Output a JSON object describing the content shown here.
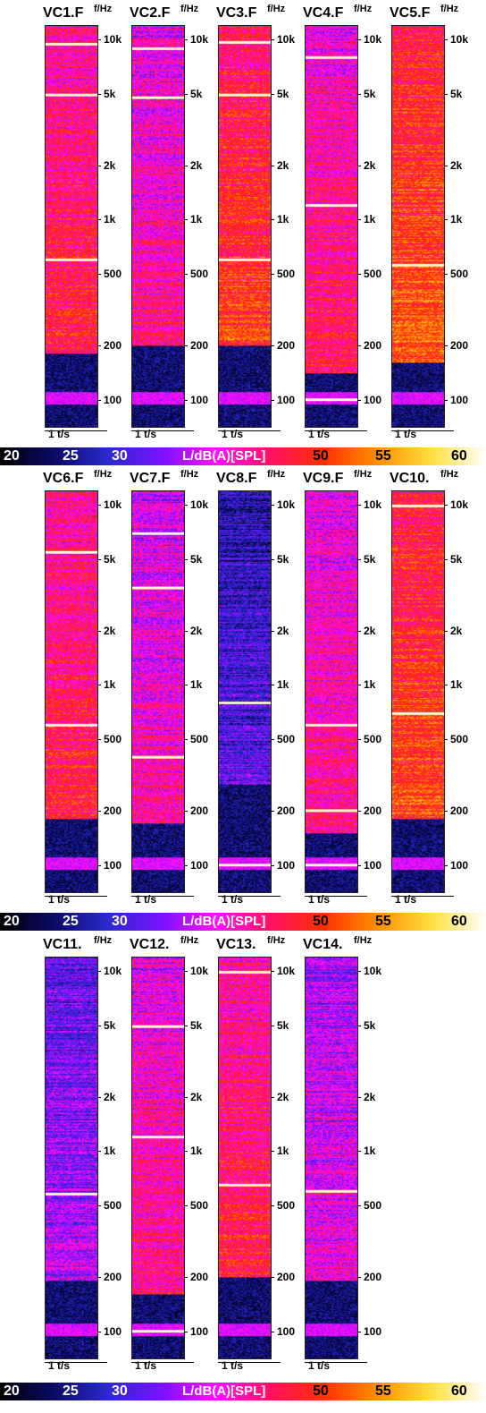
{
  "chart_data": {
    "type": "heatmap",
    "title": "",
    "xlabel": "t/s",
    "ylabel": "f/Hz",
    "y_scale": "log",
    "ylim": [
      70,
      12000
    ],
    "y_ticks": [
      "10k",
      "5k",
      "2k",
      "1k",
      "500",
      "200",
      "100"
    ],
    "y_tick_values": [
      10000,
      5000,
      2000,
      1000,
      500,
      200,
      100
    ],
    "x_tick": "1 t/s",
    "colorbar": {
      "label": "L/dB(A)[SPL]",
      "range": [
        20,
        60
      ],
      "ticks": [
        "20",
        "25",
        "30",
        "50",
        "55",
        "60"
      ],
      "colors": [
        "#000000",
        "#0a0a66",
        "#2a2ad0",
        "#7a10ff",
        "#ff10ff",
        "#ff1060",
        "#ff3000",
        "#ff9000",
        "#ffe040",
        "#ffffff"
      ]
    },
    "panels": [
      {
        "title": "VC1.F",
        "unit": "f/Hz",
        "level": 0.62,
        "tones": [
          600,
          5000,
          9500
        ],
        "quiet_below": 180
      },
      {
        "title": "VC2.F",
        "unit": "f/Hz",
        "level": 0.55,
        "tones": [
          4800,
          9000
        ],
        "quiet_below": 200
      },
      {
        "title": "VC3.F",
        "unit": "f/Hz",
        "level": 0.68,
        "tones": [
          600,
          5000,
          9800
        ],
        "quiet_below": 200
      },
      {
        "title": "VC4.F",
        "unit": "f/Hz",
        "level": 0.58,
        "tones": [
          1200,
          8000,
          100
        ],
        "quiet_below": 140
      },
      {
        "title": "VC5.F",
        "unit": "f/Hz",
        "level": 0.72,
        "tones": [
          560
        ],
        "quiet_below": 160
      },
      {
        "title": "VC6.F",
        "unit": "f/Hz",
        "level": 0.62,
        "tones": [
          600,
          5500
        ],
        "quiet_below": 180
      },
      {
        "title": "VC7.F",
        "unit": "f/Hz",
        "level": 0.52,
        "tones": [
          3500,
          7000,
          400
        ],
        "quiet_below": 170
      },
      {
        "title": "VC8.F",
        "unit": "f/Hz",
        "level": 0.3,
        "tones": [
          800,
          100
        ],
        "quiet_below": 280
      },
      {
        "title": "VC9.F",
        "unit": "f/Hz",
        "level": 0.55,
        "tones": [
          600,
          200,
          100
        ],
        "quiet_below": 150
      },
      {
        "title": "VC10.",
        "unit": "f/Hz",
        "level": 0.7,
        "tones": [
          700,
          10000
        ],
        "quiet_below": 180
      },
      {
        "title": "VC11.",
        "unit": "f/Hz",
        "level": 0.4,
        "tones": [
          580
        ],
        "quiet_below": 190
      },
      {
        "title": "VC12.",
        "unit": "f/Hz",
        "level": 0.55,
        "tones": [
          1200,
          5000,
          100
        ],
        "quiet_below": 160
      },
      {
        "title": "VC13.",
        "unit": "f/Hz",
        "level": 0.62,
        "tones": [
          650,
          10000
        ],
        "quiet_below": 200
      },
      {
        "title": "VC14.",
        "unit": "f/Hz",
        "level": 0.48,
        "tones": [
          600
        ],
        "quiet_below": 190
      }
    ]
  }
}
